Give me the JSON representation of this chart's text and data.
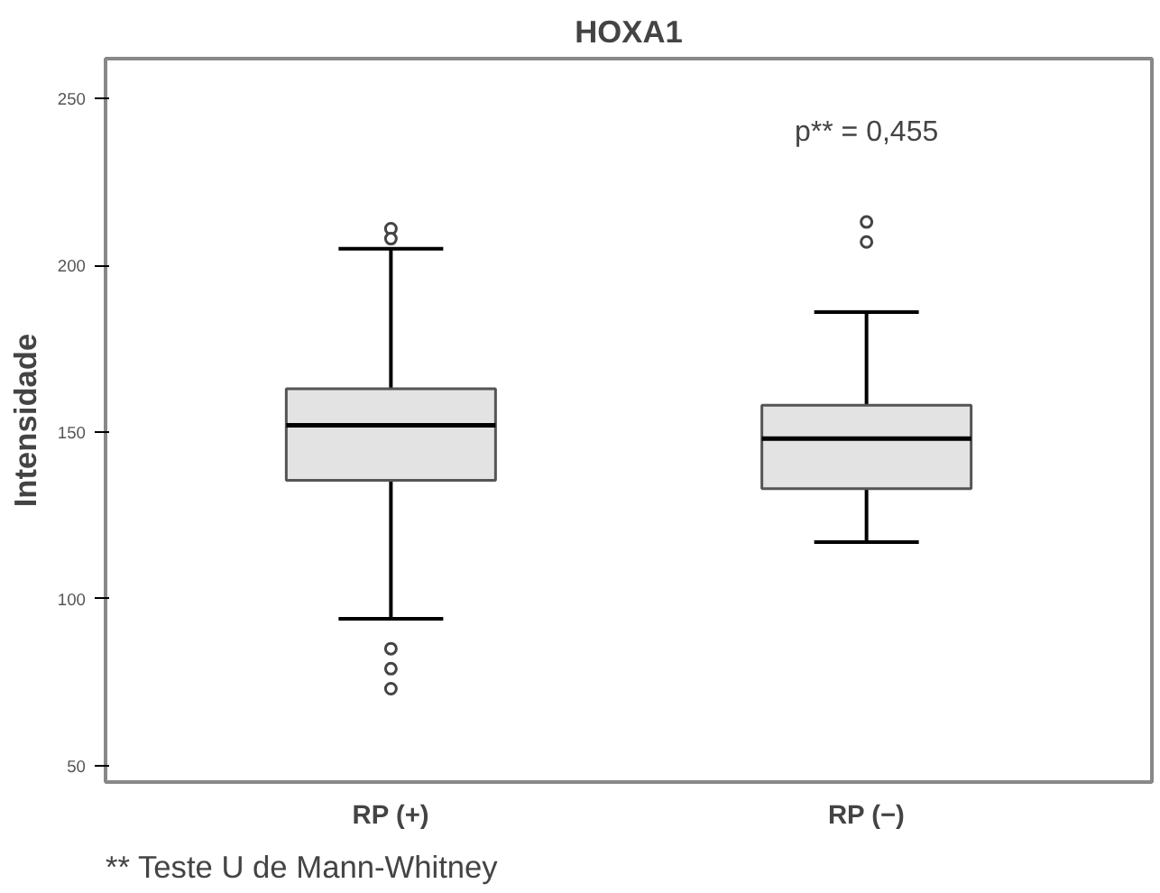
{
  "chart_data": {
    "type": "box",
    "title": "HOXA1",
    "ylabel": "Intensidade",
    "categories": [
      "RP (+)",
      "RP (−)"
    ],
    "boxes": [
      {
        "low": 94,
        "q1": 135.5,
        "median": 152,
        "q3": 163,
        "high": 205,
        "outliers": [
          211,
          208,
          85,
          79,
          73
        ]
      },
      {
        "low": 117,
        "q1": 133,
        "median": 148,
        "q3": 158,
        "high": 186,
        "outliers": [
          213,
          207
        ]
      }
    ],
    "color": "#e3e3e3",
    "ylim": [
      45,
      262
    ],
    "yticks": [
      50,
      100,
      150,
      200,
      250
    ],
    "grid": false,
    "annotations": [
      "p** = 0,455",
      "** Teste U de Mann-Whitney"
    ]
  }
}
